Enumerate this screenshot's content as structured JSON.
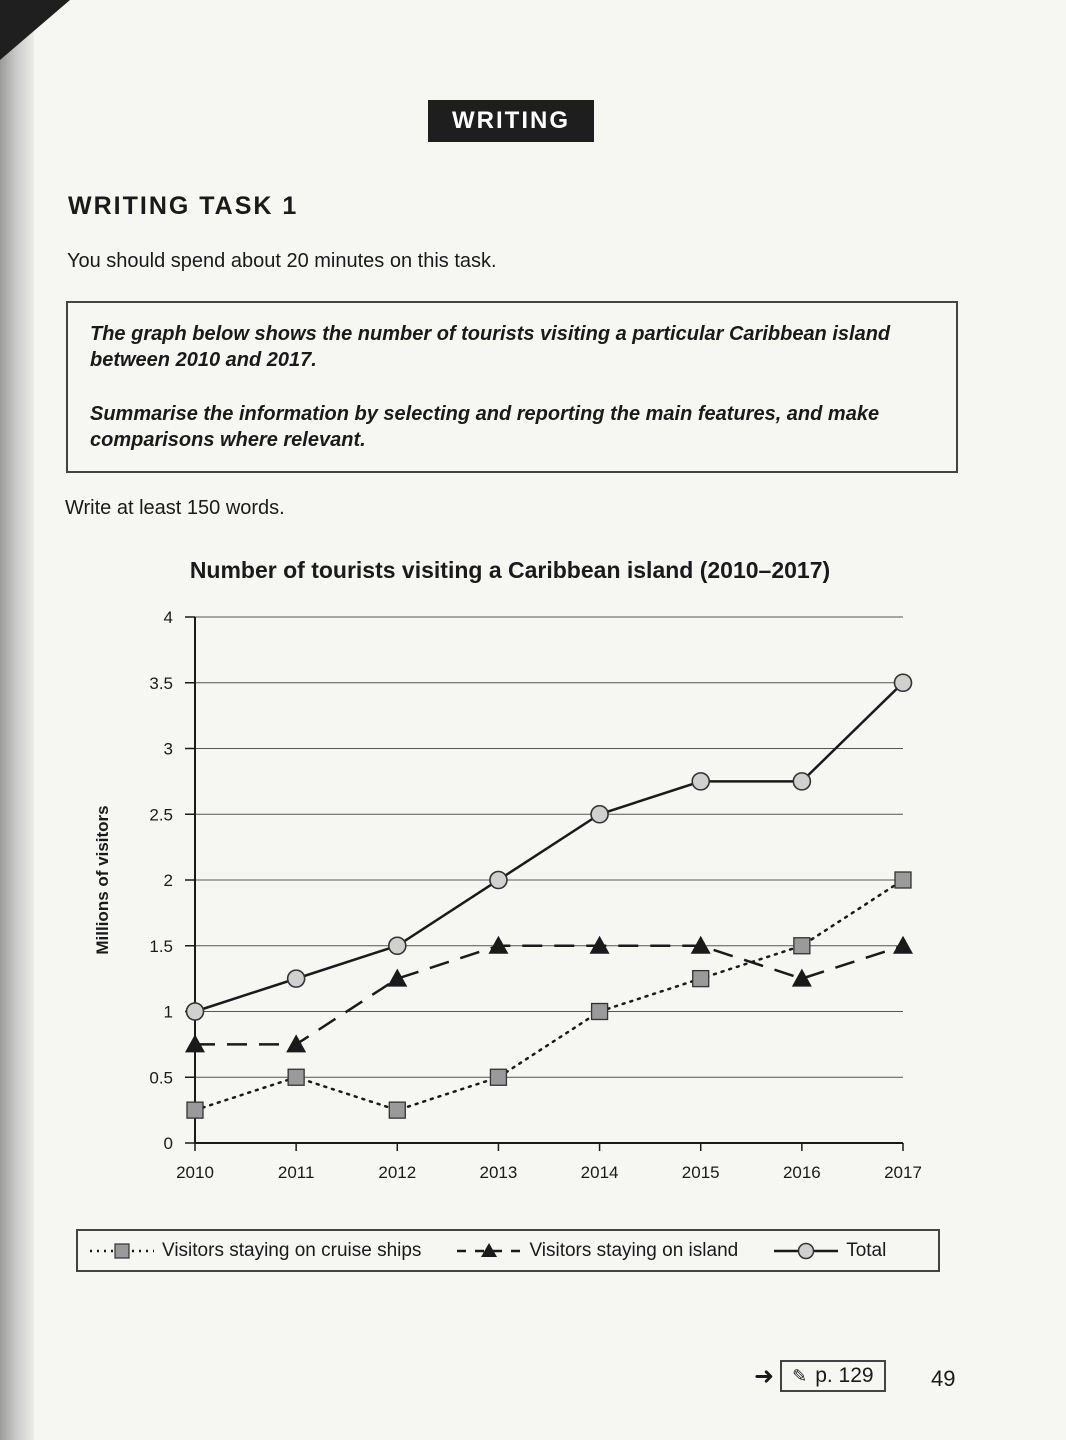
{
  "section": {
    "label": "WRITING"
  },
  "task": {
    "title": "WRITING TASK 1",
    "instruction": "You should spend about 20 minutes on this task.",
    "prompt_line1": "The graph below shows the number of tourists visiting a particular Caribbean island between 2010 and 2017.",
    "prompt_line2": "Summarise the information by selecting and reporting the main features, and make comparisons where relevant.",
    "word_count": "Write at least 150 words."
  },
  "chart_data": {
    "type": "line",
    "title": "Number of tourists visiting a Caribbean island (2010–2017)",
    "xlabel": "",
    "ylabel": "Millions of visitors",
    "x": [
      "2010",
      "2011",
      "2012",
      "2013",
      "2014",
      "2015",
      "2016",
      "2017"
    ],
    "ylim": [
      0,
      4
    ],
    "yticks": [
      "0",
      "0.5",
      "1",
      "1.5",
      "2",
      "2.5",
      "3",
      "3.5",
      "4"
    ],
    "grid": true,
    "legend_position": "bottom",
    "series": [
      {
        "name": "Visitors staying on cruise ships",
        "style": "dotted",
        "marker": "square",
        "values": [
          0.25,
          0.5,
          0.25,
          0.5,
          1.0,
          1.25,
          1.5,
          2.0
        ]
      },
      {
        "name": "Visitors staying on island",
        "style": "dashed",
        "marker": "triangle",
        "values": [
          0.75,
          0.75,
          1.25,
          1.5,
          1.5,
          1.5,
          1.25,
          1.5
        ]
      },
      {
        "name": "Total",
        "style": "solid",
        "marker": "circle",
        "values": [
          1.0,
          1.25,
          1.5,
          2.0,
          2.5,
          2.75,
          2.75,
          3.5
        ]
      }
    ]
  },
  "footer": {
    "page_ref": "p. 129",
    "page_number": "49",
    "pencil_icon": "pencil-icon",
    "arrow_icon": "arrow-right-icon"
  }
}
